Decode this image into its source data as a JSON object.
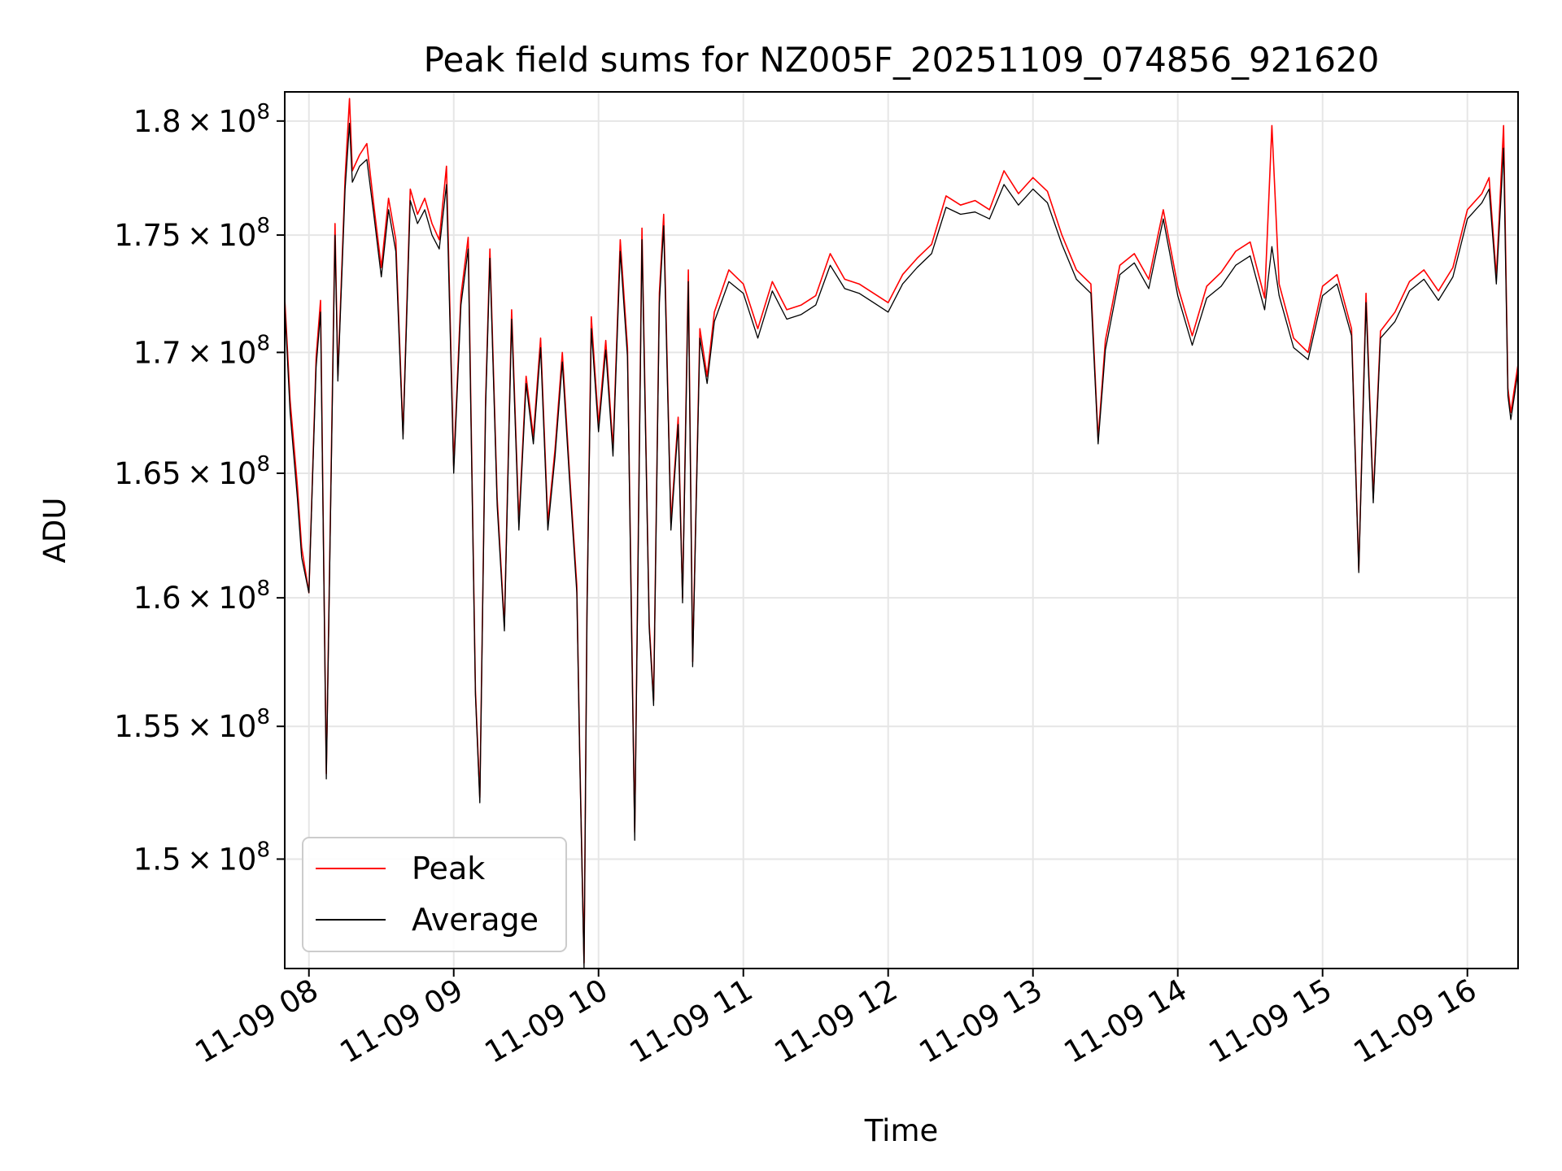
{
  "chart_data": {
    "type": "line",
    "title": "Peak field sums for NZ005F_20251109_074856_921620",
    "xlabel": "Time",
    "ylabel": "ADU",
    "ylim": [
      146000000,
      181300000
    ],
    "xlim_hours": [
      7.833,
      16.35
    ],
    "yscale": "log",
    "grid": true,
    "legend_position": "lower-left",
    "x_ticks": [
      {
        "value": 8,
        "label": "11-09 08"
      },
      {
        "value": 9,
        "label": "11-09 09"
      },
      {
        "value": 10,
        "label": "11-09 10"
      },
      {
        "value": 11,
        "label": "11-09 11"
      },
      {
        "value": 12,
        "label": "11-09 12"
      },
      {
        "value": 13,
        "label": "11-09 13"
      },
      {
        "value": 14,
        "label": "11-09 14"
      },
      {
        "value": 15,
        "label": "11-09 15"
      },
      {
        "value": 16,
        "label": "11-09 16"
      }
    ],
    "y_ticks": [
      {
        "value": 150000000,
        "mantissa": "1.5",
        "exp": "8"
      },
      {
        "value": 155000000,
        "mantissa": "1.55",
        "exp": "8"
      },
      {
        "value": 160000000,
        "mantissa": "1.6",
        "exp": "8"
      },
      {
        "value": 165000000,
        "mantissa": "1.65",
        "exp": "8"
      },
      {
        "value": 170000000,
        "mantissa": "1.7",
        "exp": "8"
      },
      {
        "value": 175000000,
        "mantissa": "1.75",
        "exp": "8"
      },
      {
        "value": 180000000,
        "mantissa": "1.8",
        "exp": "8"
      }
    ],
    "times_symbol": "×",
    "tick_base": "10",
    "series": [
      {
        "name": "Peak",
        "color": "#ff0000",
        "x": [
          7.833,
          7.87,
          7.92,
          7.95,
          8.0,
          8.05,
          8.08,
          8.12,
          8.18,
          8.2,
          8.25,
          8.28,
          8.3,
          8.35,
          8.4,
          8.45,
          8.5,
          8.55,
          8.6,
          8.65,
          8.7,
          8.75,
          8.8,
          8.85,
          8.9,
          8.95,
          9.0,
          9.05,
          9.1,
          9.15,
          9.18,
          9.22,
          9.25,
          9.3,
          9.35,
          9.4,
          9.45,
          9.5,
          9.55,
          9.6,
          9.65,
          9.7,
          9.75,
          9.8,
          9.85,
          9.87,
          9.9,
          9.92,
          9.95,
          10.0,
          10.05,
          10.1,
          10.15,
          10.2,
          10.25,
          10.3,
          10.35,
          10.38,
          10.42,
          10.45,
          10.5,
          10.55,
          10.58,
          10.62,
          10.65,
          10.7,
          10.75,
          10.8,
          10.9,
          11.0,
          11.1,
          11.2,
          11.3,
          11.4,
          11.5,
          11.6,
          11.7,
          11.8,
          11.9,
          12.0,
          12.1,
          12.2,
          12.3,
          12.4,
          12.5,
          12.6,
          12.7,
          12.8,
          12.9,
          13.0,
          13.1,
          13.2,
          13.3,
          13.4,
          13.45,
          13.5,
          13.6,
          13.7,
          13.8,
          13.9,
          14.0,
          14.1,
          14.2,
          14.3,
          14.4,
          14.5,
          14.6,
          14.65,
          14.7,
          14.8,
          14.9,
          15.0,
          15.1,
          15.2,
          15.25,
          15.3,
          15.35,
          15.4,
          15.5,
          15.6,
          15.7,
          15.8,
          15.9,
          16.0,
          16.1,
          16.15,
          16.2,
          16.25,
          16.28,
          16.3,
          16.35
        ],
        "values": [
          172300000,
          168000000,
          164500000,
          162000000,
          160200000,
          169800000,
          172200000,
          153200000,
          175500000,
          169000000,
          177500000,
          181000000,
          177800000,
          178500000,
          179000000,
          176200000,
          173600000,
          176600000,
          174800000,
          166600000,
          177000000,
          175900000,
          176600000,
          175500000,
          174800000,
          178000000,
          165300000,
          172400000,
          174900000,
          156400000,
          152300000,
          168000000,
          174400000,
          164000000,
          158900000,
          171800000,
          163000000,
          169000000,
          166500000,
          170600000,
          163000000,
          166000000,
          170000000,
          165000000,
          160500000,
          154000000,
          146200000,
          159500000,
          171500000,
          167000000,
          170500000,
          166000000,
          174800000,
          170200000,
          151000000,
          175300000,
          159000000,
          156000000,
          172500000,
          175900000,
          163000000,
          167300000,
          160000000,
          173500000,
          157500000,
          171000000,
          169000000,
          171700000,
          173500000,
          172900000,
          171000000,
          173000000,
          171800000,
          172000000,
          172400000,
          174200000,
          173100000,
          172900000,
          172500000,
          172100000,
          173300000,
          174000000,
          174600000,
          176700000,
          176300000,
          176500000,
          176100000,
          177800000,
          176800000,
          177500000,
          176900000,
          175000000,
          173500000,
          172900000,
          166400000,
          170500000,
          173700000,
          174200000,
          173100000,
          176100000,
          172800000,
          170700000,
          172800000,
          173400000,
          174300000,
          174700000,
          172300000,
          179800000,
          172900000,
          170600000,
          170000000,
          172800000,
          173300000,
          171000000,
          161100000,
          172500000,
          164000000,
          170900000,
          171700000,
          173000000,
          173500000,
          172600000,
          173600000,
          176100000,
          176800000,
          177500000,
          173200000,
          179800000,
          168500000,
          167500000,
          169500000
        ]
      },
      {
        "name": "Average",
        "color": "#000000",
        "x": [
          7.833,
          7.87,
          7.92,
          7.95,
          8.0,
          8.05,
          8.08,
          8.12,
          8.18,
          8.2,
          8.25,
          8.28,
          8.3,
          8.35,
          8.4,
          8.45,
          8.5,
          8.55,
          8.6,
          8.65,
          8.7,
          8.75,
          8.8,
          8.85,
          8.9,
          8.95,
          9.0,
          9.05,
          9.1,
          9.15,
          9.18,
          9.22,
          9.25,
          9.3,
          9.35,
          9.4,
          9.45,
          9.5,
          9.55,
          9.6,
          9.65,
          9.7,
          9.75,
          9.8,
          9.85,
          9.87,
          9.9,
          9.92,
          9.95,
          10.0,
          10.05,
          10.1,
          10.15,
          10.2,
          10.25,
          10.3,
          10.35,
          10.38,
          10.42,
          10.45,
          10.5,
          10.55,
          10.58,
          10.62,
          10.65,
          10.7,
          10.75,
          10.8,
          10.9,
          11.0,
          11.1,
          11.2,
          11.3,
          11.4,
          11.5,
          11.6,
          11.7,
          11.8,
          11.9,
          12.0,
          12.1,
          12.2,
          12.3,
          12.4,
          12.5,
          12.6,
          12.7,
          12.8,
          12.9,
          13.0,
          13.1,
          13.2,
          13.3,
          13.4,
          13.45,
          13.5,
          13.6,
          13.7,
          13.8,
          13.9,
          14.0,
          14.1,
          14.2,
          14.3,
          14.4,
          14.5,
          14.6,
          14.65,
          14.7,
          14.8,
          14.9,
          15.0,
          15.1,
          15.2,
          15.25,
          15.3,
          15.35,
          15.4,
          15.5,
          15.6,
          15.7,
          15.8,
          15.9,
          16.0,
          16.1,
          16.15,
          16.2,
          16.25,
          16.28,
          16.3,
          16.35
        ],
        "values": [
          172000000,
          167500000,
          164000000,
          161600000,
          160200000,
          169400000,
          171700000,
          153000000,
          175000000,
          168800000,
          177000000,
          179900000,
          177300000,
          178000000,
          178300000,
          175800000,
          173200000,
          176100000,
          174300000,
          166400000,
          176500000,
          175500000,
          176100000,
          175000000,
          174400000,
          177200000,
          165000000,
          172000000,
          174400000,
          156200000,
          152100000,
          167700000,
          174000000,
          163700000,
          158700000,
          171400000,
          162700000,
          168700000,
          166200000,
          170200000,
          162700000,
          165700000,
          169600000,
          164700000,
          160200000,
          153800000,
          146000000,
          159200000,
          171000000,
          166700000,
          170100000,
          165700000,
          174300000,
          169800000,
          150700000,
          174800000,
          158800000,
          155800000,
          172100000,
          175400000,
          162700000,
          167000000,
          159800000,
          173000000,
          157300000,
          170600000,
          168700000,
          171300000,
          173000000,
          172500000,
          170600000,
          172600000,
          171400000,
          171600000,
          172000000,
          173700000,
          172700000,
          172500000,
          172100000,
          171700000,
          172900000,
          173600000,
          174200000,
          176200000,
          175900000,
          176000000,
          175700000,
          177200000,
          176300000,
          177000000,
          176400000,
          174600000,
          173100000,
          172500000,
          166200000,
          170100000,
          173300000,
          173800000,
          172700000,
          175700000,
          172400000,
          170300000,
          172300000,
          172800000,
          173700000,
          174100000,
          171800000,
          174500000,
          172400000,
          170200000,
          169700000,
          172400000,
          172900000,
          170700000,
          161000000,
          172100000,
          163800000,
          170600000,
          171300000,
          172600000,
          173100000,
          172200000,
          173200000,
          175700000,
          176400000,
          177000000,
          172900000,
          178800000,
          168200000,
          167200000,
          169200000
        ]
      }
    ]
  }
}
